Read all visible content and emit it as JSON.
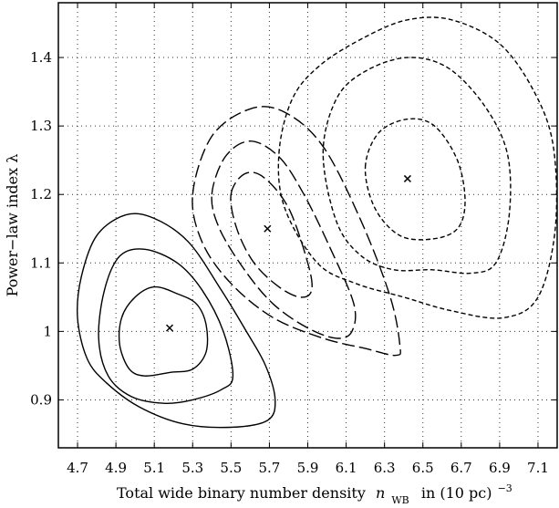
{
  "chart_data": {
    "type": "contour",
    "xlabel": "Total wide binary number density",
    "xlabel_symbol": "n",
    "xlabel_subscript": "WB",
    "xlabel_units": "in (10 pc)",
    "xlabel_exponent": "−3",
    "ylabel": "Power−law index  λ",
    "xlim": [
      4.6,
      7.2
    ],
    "ylim": [
      0.83,
      1.48
    ],
    "xticks": [
      "4.7",
      "4.9",
      "5.1",
      "5.3",
      "5.5",
      "5.7",
      "5.9",
      "6.1",
      "6.3",
      "6.5",
      "6.7",
      "6.9",
      "7.1"
    ],
    "yticks": [
      "0.9",
      "1",
      "1.1",
      "1.2",
      "1.3",
      "1.4"
    ],
    "grid": true,
    "series": [
      {
        "linestyle": "solid",
        "best_fit": {
          "x": 5.18,
          "y": 1.005
        },
        "contours": [
          [
            [
              4.92,
              0.98
            ],
            [
              4.97,
              0.945
            ],
            [
              5.05,
              0.935
            ],
            [
              5.18,
              0.94
            ],
            [
              5.3,
              0.945
            ],
            [
              5.37,
              0.97
            ],
            [
              5.37,
              1.01
            ],
            [
              5.32,
              1.04
            ],
            [
              5.22,
              1.055
            ],
            [
              5.1,
              1.065
            ],
            [
              5.0,
              1.05
            ],
            [
              4.93,
              1.02
            ]
          ],
          [
            [
              4.81,
              0.99
            ],
            [
              4.86,
              0.935
            ],
            [
              4.98,
              0.905
            ],
            [
              5.15,
              0.895
            ],
            [
              5.3,
              0.9
            ],
            [
              5.45,
              0.915
            ],
            [
              5.51,
              0.935
            ],
            [
              5.46,
              1.0
            ],
            [
              5.35,
              1.06
            ],
            [
              5.22,
              1.1
            ],
            [
              5.05,
              1.12
            ],
            [
              4.92,
              1.11
            ],
            [
              4.84,
              1.06
            ]
          ],
          [
            [
              4.7,
              1.02
            ],
            [
              4.75,
              0.96
            ],
            [
              4.85,
              0.925
            ],
            [
              5.02,
              0.89
            ],
            [
              5.25,
              0.865
            ],
            [
              5.5,
              0.86
            ],
            [
              5.69,
              0.87
            ],
            [
              5.73,
              0.9
            ],
            [
              5.68,
              0.95
            ],
            [
              5.58,
              1.0
            ],
            [
              5.45,
              1.06
            ],
            [
              5.28,
              1.13
            ],
            [
              5.1,
              1.165
            ],
            [
              4.95,
              1.17
            ],
            [
              4.8,
              1.14
            ],
            [
              4.72,
              1.08
            ]
          ]
        ]
      },
      {
        "linestyle": "longdash",
        "best_fit": {
          "x": 5.69,
          "y": 1.15
        },
        "contours": [
          [
            [
              5.5,
              1.2
            ],
            [
              5.57,
              1.23
            ],
            [
              5.67,
              1.225
            ],
            [
              5.8,
              1.18
            ],
            [
              5.9,
              1.1
            ],
            [
              5.92,
              1.06
            ],
            [
              5.86,
              1.05
            ],
            [
              5.75,
              1.065
            ],
            [
              5.62,
              1.1
            ],
            [
              5.53,
              1.15
            ]
          ],
          [
            [
              5.4,
              1.2
            ],
            [
              5.47,
              1.255
            ],
            [
              5.6,
              1.278
            ],
            [
              5.75,
              1.255
            ],
            [
              5.88,
              1.2
            ],
            [
              6.02,
              1.12
            ],
            [
              6.14,
              1.04
            ],
            [
              6.13,
              1.0
            ],
            [
              6.05,
              0.99
            ],
            [
              5.9,
              1.005
            ],
            [
              5.72,
              1.04
            ],
            [
              5.57,
              1.09
            ],
            [
              5.44,
              1.15
            ]
          ],
          [
            [
              5.3,
              1.2
            ],
            [
              5.4,
              1.285
            ],
            [
              5.6,
              1.325
            ],
            [
              5.78,
              1.32
            ],
            [
              5.98,
              1.27
            ],
            [
              6.18,
              1.16
            ],
            [
              6.33,
              1.05
            ],
            [
              6.38,
              0.98
            ],
            [
              6.36,
              0.965
            ],
            [
              6.2,
              0.975
            ],
            [
              5.98,
              0.99
            ],
            [
              5.72,
              1.02
            ],
            [
              5.5,
              1.07
            ],
            [
              5.35,
              1.13
            ]
          ]
        ]
      },
      {
        "linestyle": "shortdash",
        "best_fit": {
          "x": 6.42,
          "y": 1.223
        },
        "contours": [
          [
            [
              6.2,
              1.24
            ],
            [
              6.27,
              1.29
            ],
            [
              6.42,
              1.31
            ],
            [
              6.56,
              1.3
            ],
            [
              6.68,
              1.25
            ],
            [
              6.72,
              1.19
            ],
            [
              6.68,
              1.15
            ],
            [
              6.55,
              1.135
            ],
            [
              6.38,
              1.14
            ],
            [
              6.25,
              1.18
            ]
          ],
          [
            [
              5.98,
              1.26
            ],
            [
              6.05,
              1.34
            ],
            [
              6.2,
              1.38
            ],
            [
              6.42,
              1.4
            ],
            [
              6.63,
              1.385
            ],
            [
              6.82,
              1.33
            ],
            [
              6.94,
              1.26
            ],
            [
              6.95,
              1.17
            ],
            [
              6.88,
              1.1
            ],
            [
              6.75,
              1.085
            ],
            [
              6.55,
              1.09
            ],
            [
              6.35,
              1.09
            ],
            [
              6.18,
              1.11
            ],
            [
              6.05,
              1.16
            ]
          ],
          [
            [
              5.75,
              1.26
            ],
            [
              5.82,
              1.34
            ],
            [
              5.97,
              1.39
            ],
            [
              6.2,
              1.43
            ],
            [
              6.42,
              1.455
            ],
            [
              6.65,
              1.455
            ],
            [
              6.9,
              1.42
            ],
            [
              7.08,
              1.35
            ],
            [
              7.18,
              1.27
            ],
            [
              7.19,
              1.15
            ],
            [
              7.1,
              1.05
            ],
            [
              6.92,
              1.02
            ],
            [
              6.65,
              1.03
            ],
            [
              6.4,
              1.05
            ],
            [
              6.15,
              1.07
            ],
            [
              5.95,
              1.1
            ],
            [
              5.78,
              1.18
            ]
          ]
        ]
      }
    ]
  }
}
